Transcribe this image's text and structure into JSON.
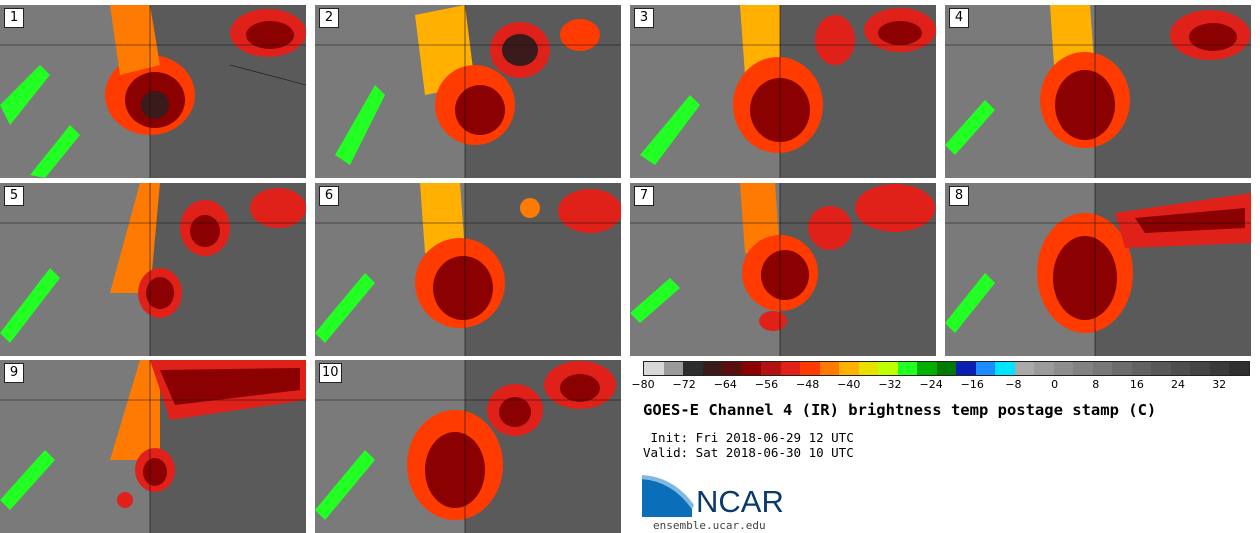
{
  "panels": [
    {
      "label": "1"
    },
    {
      "label": "2"
    },
    {
      "label": "3"
    },
    {
      "label": "4"
    },
    {
      "label": "5"
    },
    {
      "label": "6"
    },
    {
      "label": "7"
    },
    {
      "label": "8"
    },
    {
      "label": "9"
    },
    {
      "label": "10"
    }
  ],
  "colorbar": {
    "colors": [
      "#d8d8d8",
      "#9a9a9a",
      "#2d2d2d",
      "#3a1a1a",
      "#5a0f0f",
      "#8b0000",
      "#b31212",
      "#e0211a",
      "#ff3b00",
      "#ff7a00",
      "#ffb000",
      "#e8e000",
      "#c0ff00",
      "#22ff22",
      "#00b000",
      "#007a00",
      "#0a1eb4",
      "#1a8cff",
      "#00e5ff",
      "#aaaaaa",
      "#9b9b9b",
      "#8e8e8e",
      "#828282",
      "#777777",
      "#6c6c6c",
      "#626262",
      "#585858",
      "#4e4e4e",
      "#444444",
      "#3a3a3a",
      "#303030"
    ],
    "ticks": [
      "−80",
      "−72",
      "−64",
      "−56",
      "−48",
      "−40",
      "−32",
      "−24",
      "−16",
      "−8",
      "0",
      "8",
      "16",
      "24",
      "32"
    ]
  },
  "title": "GOES-E Channel 4 (IR) brightness temp postage stamp (C)",
  "init": " Init: Fri 2018-06-29 12 UTC",
  "valid": "Valid: Sat 2018-06-30 10 UTC",
  "logo": {
    "text": "NCAR",
    "url": "ensemble.ucar.edu"
  }
}
